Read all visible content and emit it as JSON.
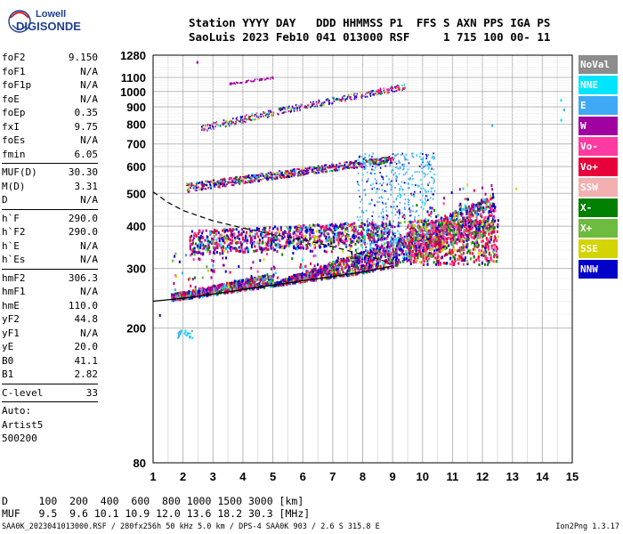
{
  "logo": {
    "line1": "Lowell",
    "line2": "DIGISONDE"
  },
  "header": {
    "line1": "Station YYYY DAY   DDD HHMMSS P1  FFS S AXN PPS IGA PS",
    "line2": "SaoLuis 2023 Feb10 041 013000 RSF     1 715 100 00- 11"
  },
  "params": {
    "group1": [
      {
        "k": "foF2",
        "v": "9.150"
      },
      {
        "k": "foF1",
        "v": "N/A"
      },
      {
        "k": "foF1p",
        "v": "N/A"
      },
      {
        "k": "foE",
        "v": "N/A"
      },
      {
        "k": "foEp",
        "v": "0.35"
      },
      {
        "k": "fxI",
        "v": "9.75"
      },
      {
        "k": "foEs",
        "v": "N/A"
      },
      {
        "k": "fmin",
        "v": "6.05"
      }
    ],
    "group2": [
      {
        "k": "MUF(D)",
        "v": "30.30"
      },
      {
        "k": "M(D)",
        "v": "3.31"
      },
      {
        "k": "D",
        "v": "N/A"
      }
    ],
    "group3": [
      {
        "k": "h`F",
        "v": "290.0"
      },
      {
        "k": "h`F2",
        "v": "290.0"
      },
      {
        "k": "h`E",
        "v": "N/A"
      },
      {
        "k": "h`Es",
        "v": "N/A"
      }
    ],
    "group4": [
      {
        "k": "hmF2",
        "v": "306.3"
      },
      {
        "k": "hmF1",
        "v": "N/A"
      },
      {
        "k": "hmE",
        "v": "110.0"
      },
      {
        "k": "yF2",
        "v": "44.8"
      },
      {
        "k": "yF1",
        "v": "N/A"
      },
      {
        "k": "yE",
        "v": "20.0"
      },
      {
        "k": "B0",
        "v": "41.1"
      },
      {
        "k": "B1",
        "v": "2.82"
      }
    ],
    "clevel": {
      "k": "C-level",
      "v": "33"
    },
    "auto": [
      "Auto:",
      "Artist5",
      "500200"
    ]
  },
  "legend": [
    {
      "label": "NoVal",
      "color": "#8c8c8c"
    },
    {
      "label": "NNE",
      "color": "#00e5ff"
    },
    {
      "label": "E",
      "color": "#3fa9f5"
    },
    {
      "label": "W",
      "color": "#a000a0"
    },
    {
      "label": "Vo-",
      "color": "#ff3aa0"
    },
    {
      "label": "Vo+",
      "color": "#e8003a"
    },
    {
      "label": "SSW",
      "color": "#f2b0b0"
    },
    {
      "label": "X-",
      "color": "#008000"
    },
    {
      "label": "X+",
      "color": "#6dbb3f"
    },
    {
      "label": "SSE",
      "color": "#d4d400"
    },
    {
      "label": "NNW",
      "color": "#0000c8"
    }
  ],
  "footer": {
    "dline": "D     100  200  400  600  800 1000 1500 3000 [km]",
    "mufline": "MUF   9.5  9.6 10.1 10.9 12.0 13.6 18.2 30.3 [MHz]",
    "info": "SAA0K_2023041013000.RSF / 280fx256h 50 kHz 5.0 km / DPS-4 SAA0K 903 / 2.6 S 315.8 E",
    "version": "Ion2Png 1.3.17"
  },
  "chart_data": {
    "type": "scatter",
    "xlabel": "",
    "ylabel": "",
    "x_ticks": [
      1,
      2,
      3,
      4,
      5,
      6,
      7,
      8,
      9,
      10,
      11,
      12,
      13,
      14,
      15
    ],
    "y_ticks": [
      80,
      200,
      300,
      400,
      500,
      600,
      700,
      800,
      900,
      1000,
      1100,
      1280
    ],
    "xlim": [
      1,
      15
    ],
    "ylim": [
      80,
      1280
    ],
    "y_scale": "log",
    "grid": true,
    "trace_lower_profile": {
      "x": [
        1.0,
        2.0,
        3.0,
        4.0,
        5.0,
        6.0,
        7.0,
        8.0,
        9.0
      ],
      "y": [
        240,
        245,
        252,
        260,
        268,
        276,
        284,
        293,
        305
      ]
    },
    "trace_dashed_profile": {
      "x": [
        1.0,
        1.5,
        2.0,
        3.0,
        4.0,
        5.0,
        6.0,
        7.0,
        8.0,
        9.0
      ],
      "y": [
        505,
        470,
        445,
        415,
        395,
        378,
        365,
        348,
        330,
        310
      ]
    },
    "echo_clusters": [
      {
        "name": "F-trace",
        "x": [
          1.5,
          12.5
        ],
        "y": [
          245,
          440
        ]
      },
      {
        "name": "2F-trace",
        "x": [
          2.0,
          9.0
        ],
        "y": [
          500,
          620
        ]
      },
      {
        "name": "3F-trace",
        "x": [
          2.5,
          9.5
        ],
        "y": [
          760,
          1040
        ]
      },
      {
        "name": "spread-F",
        "x": [
          7.5,
          10.5
        ],
        "y": [
          330,
          680
        ]
      }
    ]
  }
}
